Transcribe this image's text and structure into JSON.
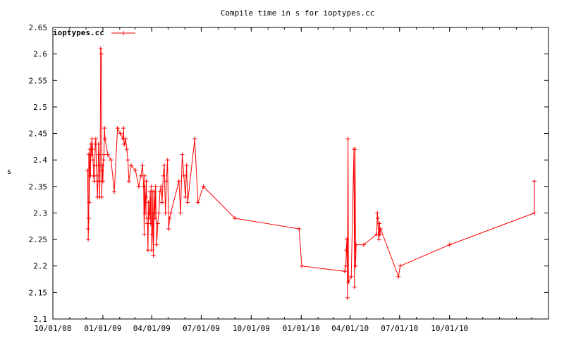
{
  "chart_data": {
    "type": "line",
    "title": "Compile time in s for ioptypes.cc",
    "xlabel": "",
    "ylabel": "s",
    "ylim": [
      2.1,
      2.65
    ],
    "xlim": [
      "2008-10-01",
      "2011-04-01"
    ],
    "yticks": [
      "2.1",
      "2.15",
      "2.2",
      "2.25",
      "2.3",
      "2.35",
      "2.4",
      "2.45",
      "2.5",
      "2.55",
      "2.6",
      "2.65"
    ],
    "xticks": [
      {
        "label": "10/01/08",
        "date": "2008-10-01"
      },
      {
        "label": "01/01/09",
        "date": "2009-01-01"
      },
      {
        "label": "04/01/09",
        "date": "2009-04-01"
      },
      {
        "label": "07/01/09",
        "date": "2009-07-01"
      },
      {
        "label": "10/01/09",
        "date": "2009-10-01"
      },
      {
        "label": "01/01/10",
        "date": "2010-01-01"
      },
      {
        "label": "04/01/10",
        "date": "2010-04-01"
      },
      {
        "label": "07/01/10",
        "date": "2010-07-01"
      },
      {
        "label": "10/01/10",
        "date": "2010-10-01"
      }
    ],
    "grid": false,
    "legend": "top-left",
    "marker": "plus",
    "series": [
      {
        "name": "ioptypes.cc",
        "color": "#ff0000",
        "x": [
          "2008-12-04",
          "2008-12-05",
          "2008-12-05",
          "2008-12-06",
          "2008-12-06",
          "2008-12-07",
          "2008-12-08",
          "2008-12-09",
          "2008-12-10",
          "2008-12-11",
          "2008-12-12",
          "2008-12-13",
          "2008-12-14",
          "2008-12-15",
          "2008-12-16",
          "2008-12-17",
          "2008-12-18",
          "2008-12-19",
          "2008-12-20",
          "2008-12-21",
          "2008-12-22",
          "2008-12-23",
          "2008-12-24",
          "2008-12-25",
          "2008-12-26",
          "2008-12-26",
          "2008-12-27",
          "2008-12-28",
          "2008-12-29",
          "2008-12-30",
          "2008-12-30",
          "2008-12-31",
          "2009-01-01",
          "2009-01-02",
          "2009-01-03",
          "2009-01-04",
          "2009-01-05",
          "2009-01-10",
          "2009-01-16",
          "2009-01-22",
          "2009-01-28",
          "2009-02-02",
          "2009-02-07",
          "2009-02-08",
          "2009-02-09",
          "2009-02-10",
          "2009-02-12",
          "2009-02-14",
          "2009-02-16",
          "2009-02-18",
          "2009-02-22",
          "2009-03-02",
          "2009-03-08",
          "2009-03-12",
          "2009-03-15",
          "2009-03-17",
          "2009-03-18",
          "2009-03-19",
          "2009-03-20",
          "2009-03-21",
          "2009-03-22",
          "2009-03-23",
          "2009-03-24",
          "2009-03-25",
          "2009-03-26",
          "2009-03-27",
          "2009-03-28",
          "2009-03-29",
          "2009-03-30",
          "2009-03-31",
          "2009-04-01",
          "2009-04-02",
          "2009-04-03",
          "2009-04-04",
          "2009-04-05",
          "2009-04-06",
          "2009-04-07",
          "2009-04-08",
          "2009-04-10",
          "2009-04-12",
          "2009-04-14",
          "2009-04-16",
          "2009-04-18",
          "2009-04-20",
          "2009-04-22",
          "2009-04-24",
          "2009-04-26",
          "2009-04-28",
          "2009-04-30",
          "2009-05-02",
          "2009-05-04",
          "2009-05-06",
          "2009-05-21",
          "2009-05-24",
          "2009-05-27",
          "2009-05-30",
          "2009-06-02",
          "2009-06-04",
          "2009-06-06",
          "2009-06-19",
          "2009-06-25",
          "2009-07-05",
          "2009-09-01",
          "2009-12-28",
          "2010-01-02",
          "2010-03-22",
          "2010-03-24",
          "2010-03-25",
          "2010-03-26",
          "2010-03-27",
          "2010-03-28",
          "2010-03-29",
          "2010-04-03",
          "2010-04-08",
          "2010-04-09",
          "2010-04-10",
          "2010-04-11",
          "2010-04-12",
          "2010-04-26",
          "2010-05-20",
          "2010-05-21",
          "2010-05-22",
          "2010-05-23",
          "2010-05-24",
          "2010-05-25",
          "2010-05-26",
          "2010-05-27",
          "2010-06-29",
          "2010-07-02",
          "2010-10-01",
          "2011-03-06",
          "2011-03-06"
        ],
        "values": [
          2.38,
          2.27,
          2.25,
          2.29,
          2.41,
          2.32,
          2.42,
          2.37,
          2.43,
          2.41,
          2.44,
          2.42,
          2.4,
          2.37,
          2.36,
          2.39,
          2.43,
          2.44,
          2.39,
          2.37,
          2.33,
          2.36,
          2.43,
          2.41,
          2.36,
          2.33,
          2.39,
          2.61,
          2.6,
          2.38,
          2.33,
          2.39,
          2.36,
          2.4,
          2.41,
          2.46,
          2.44,
          2.41,
          2.4,
          2.34,
          2.46,
          2.45,
          2.44,
          2.46,
          2.43,
          2.43,
          2.44,
          2.42,
          2.4,
          2.36,
          2.39,
          2.38,
          2.35,
          2.37,
          2.39,
          2.35,
          2.26,
          2.37,
          2.3,
          2.33,
          2.36,
          2.29,
          2.28,
          2.23,
          2.32,
          2.29,
          2.3,
          2.34,
          2.28,
          2.35,
          2.23,
          2.26,
          2.34,
          2.22,
          2.3,
          2.34,
          2.29,
          2.35,
          2.24,
          2.28,
          2.3,
          2.34,
          2.35,
          2.32,
          2.37,
          2.39,
          2.3,
          2.36,
          2.4,
          2.27,
          2.29,
          2.3,
          2.36,
          2.3,
          2.41,
          2.37,
          2.33,
          2.39,
          2.32,
          2.44,
          2.32,
          2.35,
          2.29,
          2.27,
          2.2,
          2.19,
          2.2,
          2.23,
          2.25,
          2.14,
          2.44,
          2.17,
          2.18,
          2.42,
          2.16,
          2.42,
          2.2,
          2.24,
          2.24,
          2.26,
          2.3,
          2.29,
          2.26,
          2.25,
          2.28,
          2.26,
          2.27,
          2.18,
          2.2,
          2.24,
          2.3,
          2.36
        ]
      }
    ]
  }
}
